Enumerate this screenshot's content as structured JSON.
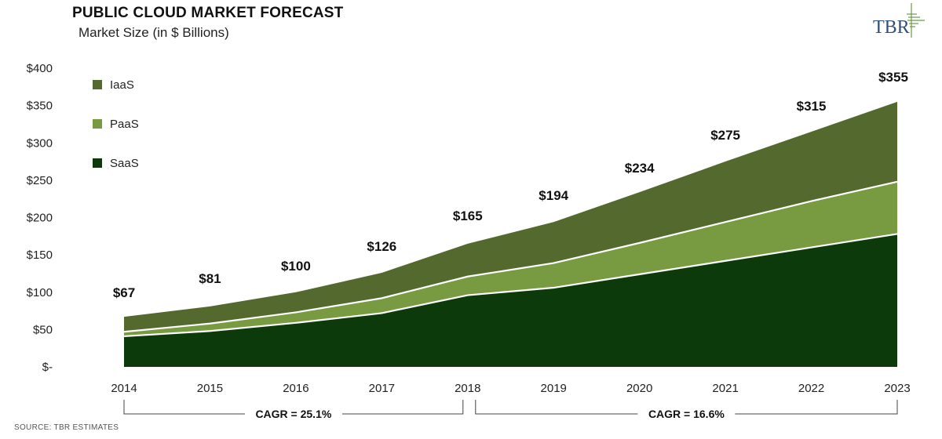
{
  "header": {
    "title": "PUBLIC CLOUD MARKET FORECAST",
    "subtitle": "Market Size (in $ Billions)",
    "logo_text": "TBR"
  },
  "footer": {
    "source": "SOURCE: TBR ESTIMATES"
  },
  "colors": {
    "iaas": "#54692e",
    "paas": "#789a40",
    "saas": "#0c3a0a",
    "divider": "#ffffff",
    "logo": "#2f4f7f",
    "logo_accent": "#6b9a45"
  },
  "chart_data": {
    "type": "area",
    "stacked": true,
    "title": "PUBLIC CLOUD MARKET FORECAST",
    "subtitle": "Market Size (in $ Billions)",
    "categories": [
      "2014",
      "2015",
      "2016",
      "2017",
      "2018",
      "2019",
      "2020",
      "2021",
      "2022",
      "2023"
    ],
    "series": [
      {
        "name": "SaaS",
        "values": [
          41,
          48,
          59,
          72,
          96,
          106,
          124,
          142,
          160,
          178
        ]
      },
      {
        "name": "PaaS",
        "values": [
          6,
          10,
          14,
          20,
          25,
          33,
          42,
          52,
          62,
          70
        ]
      },
      {
        "name": "IaaS",
        "values": [
          20,
          23,
          27,
          34,
          44,
          55,
          68,
          81,
          93,
          107
        ]
      }
    ],
    "totals": [
      67,
      81,
      100,
      126,
      165,
      194,
      234,
      275,
      315,
      355
    ],
    "total_labels": [
      "$67",
      "$81",
      "$100",
      "$126",
      "$165",
      "$194",
      "$234",
      "$275",
      "$315",
      "$355"
    ],
    "ylim": [
      0,
      400
    ],
    "yticks": [
      0,
      50,
      100,
      150,
      200,
      250,
      300,
      350,
      400
    ],
    "ytick_labels": [
      "$-",
      "$50",
      "$100",
      "$150",
      "$200",
      "$250",
      "$300",
      "$350",
      "$400"
    ],
    "legend": {
      "position": "top-left",
      "entries": [
        "IaaS",
        "PaaS",
        "SaaS"
      ]
    },
    "annotations": [
      {
        "text": "CAGR = 25.1%",
        "from": "2014",
        "to": "2018"
      },
      {
        "text": "CAGR = 16.6%",
        "from": "2018",
        "to": "2023"
      }
    ],
    "grid": false
  }
}
